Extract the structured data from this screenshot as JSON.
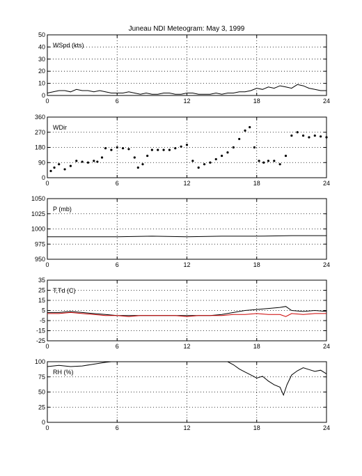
{
  "title": "Juneau NDI Meteogram:        May  3, 1999",
  "chart_data": [
    {
      "type": "line",
      "label": "WSpd (kts)",
      "xlim": [
        0,
        24
      ],
      "ylim": [
        0,
        50
      ],
      "xticks": [
        "0",
        "6",
        "12",
        "18",
        "24"
      ],
      "yticks": [
        "0",
        "10",
        "20",
        "30",
        "40",
        "50"
      ],
      "grid": true,
      "series": [
        {
          "color": "#000000",
          "x": [
            0,
            0.5,
            1,
            1.5,
            2,
            2.5,
            3,
            3.5,
            4,
            4.5,
            5,
            5.5,
            6,
            6.5,
            7,
            7.5,
            8,
            8.5,
            9,
            9.5,
            10,
            10.5,
            11,
            11.5,
            12,
            12.5,
            13,
            13.5,
            14,
            14.5,
            15,
            15.5,
            16,
            16.5,
            17,
            17.5,
            18,
            18.5,
            19,
            19.5,
            20,
            20.5,
            21,
            21.5,
            22,
            22.5,
            23,
            23.5,
            24
          ],
          "y": [
            2,
            3,
            4,
            4,
            3,
            5,
            4,
            4,
            3,
            4,
            3,
            2,
            2,
            2,
            3,
            2,
            1,
            2,
            1,
            1,
            2,
            2,
            1,
            1,
            2,
            2,
            1,
            1,
            1,
            2,
            1,
            2,
            2,
            3,
            3,
            4,
            6,
            5,
            7,
            6,
            8,
            7,
            6,
            9,
            8,
            6,
            5,
            4,
            4
          ]
        }
      ]
    },
    {
      "type": "scatter",
      "label": "WDir",
      "xlim": [
        0,
        24
      ],
      "ylim": [
        0,
        360
      ],
      "xticks": [
        "0",
        "6",
        "12",
        "18",
        "24"
      ],
      "yticks": [
        "0",
        "90",
        "180",
        "270",
        "360"
      ],
      "grid": true,
      "series": [
        {
          "color": "#000000",
          "x": [
            0.3,
            0.6,
            1,
            1.5,
            2,
            2.5,
            3,
            3.5,
            4,
            4.3,
            4.7,
            5,
            5.5,
            6,
            6.5,
            7,
            7.5,
            7.8,
            8.2,
            8.6,
            9,
            9.5,
            10,
            10.5,
            11,
            11.5,
            12,
            12.5,
            13,
            13.5,
            14,
            14.5,
            15,
            15.5,
            16,
            16.5,
            17,
            17.4,
            17.8,
            18.2,
            18.6,
            19,
            19.5,
            20,
            20.5,
            21,
            21.5,
            22,
            22.5,
            23,
            23.5,
            24
          ],
          "y": [
            40,
            60,
            80,
            50,
            70,
            100,
            95,
            90,
            100,
            95,
            120,
            175,
            165,
            180,
            175,
            170,
            120,
            60,
            80,
            130,
            165,
            165,
            165,
            165,
            175,
            185,
            195,
            100,
            60,
            80,
            90,
            110,
            130,
            150,
            180,
            230,
            280,
            300,
            180,
            100,
            90,
            100,
            100,
            80,
            130,
            250,
            270,
            250,
            240,
            250,
            245,
            240
          ]
        }
      ]
    },
    {
      "type": "line",
      "label": "P (mb)",
      "xlim": [
        0,
        24
      ],
      "ylim": [
        950,
        1050
      ],
      "xticks": [
        "0",
        "6",
        "12",
        "18",
        "24"
      ],
      "yticks": [
        "950",
        "975",
        "1000",
        "1025",
        "1050"
      ],
      "grid": true,
      "series": [
        {
          "color": "#000000",
          "x": [
            0,
            3,
            6,
            9,
            12,
            15,
            18,
            21,
            24
          ],
          "y": [
            987,
            987,
            987,
            988,
            987,
            988,
            988,
            989,
            989
          ]
        }
      ]
    },
    {
      "type": "line",
      "label": "T,Td (C)",
      "xlim": [
        0,
        24
      ],
      "ylim": [
        -25,
        35
      ],
      "xticks": [
        "0",
        "6",
        "12",
        "18",
        "24"
      ],
      "yticks": [
        "-25",
        "-15",
        "-5",
        "5",
        "15",
        "25",
        "35"
      ],
      "grid": true,
      "series": [
        {
          "color": "#000000",
          "x": [
            0,
            1,
            2,
            3,
            4,
            5,
            6,
            7,
            8,
            9,
            10,
            11,
            12,
            13,
            14,
            15,
            16,
            17,
            18,
            19,
            20,
            20.5,
            21,
            22,
            23,
            24
          ],
          "y": [
            3,
            3,
            4,
            3,
            2,
            1,
            0,
            0,
            0,
            0,
            0,
            0,
            0,
            0,
            0,
            1,
            3,
            5,
            6,
            7,
            8,
            9,
            5,
            4,
            5,
            4
          ]
        },
        {
          "color": "#cc0000",
          "x": [
            0,
            1,
            2,
            3,
            4,
            5,
            6,
            7,
            8,
            9,
            10,
            11,
            12,
            13,
            14,
            15,
            16,
            17,
            18,
            19,
            20,
            20.5,
            21,
            22,
            23,
            24
          ],
          "y": [
            2,
            2,
            3,
            2,
            1,
            0,
            0,
            -1,
            0,
            0,
            0,
            0,
            -1,
            0,
            0,
            0,
            1,
            1,
            2,
            1,
            1,
            -1,
            2,
            1,
            2,
            2
          ]
        }
      ]
    },
    {
      "type": "line",
      "label": "RH (%)",
      "xlim": [
        0,
        24
      ],
      "ylim": [
        0,
        100
      ],
      "xticks": [
        "0",
        "6",
        "12",
        "18",
        "24"
      ],
      "yticks": [
        "0",
        "25",
        "50",
        "75",
        "100"
      ],
      "grid": true,
      "series": [
        {
          "color": "#000000",
          "x": [
            0,
            1,
            2,
            3,
            4,
            5,
            5.5,
            6,
            15.5,
            16,
            16.5,
            17,
            17.5,
            18,
            18.5,
            19,
            19.5,
            20,
            20.3,
            20.6,
            21,
            21.5,
            22,
            22.5,
            23,
            23.5,
            24
          ],
          "y": [
            92,
            94,
            92,
            93,
            96,
            99,
            100,
            100,
            100,
            95,
            88,
            83,
            78,
            73,
            76,
            68,
            62,
            58,
            45,
            62,
            78,
            85,
            90,
            87,
            84,
            86,
            80
          ]
        }
      ]
    }
  ]
}
